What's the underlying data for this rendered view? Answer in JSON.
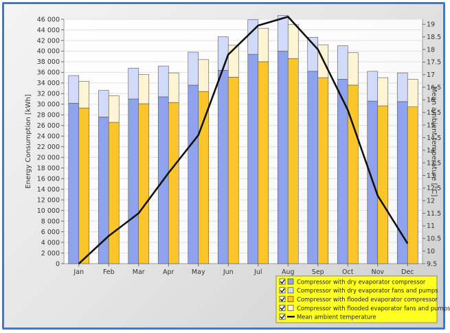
{
  "chart_data": {
    "type": "bar",
    "categories": [
      "Jan",
      "Feb",
      "Mar",
      "Apr",
      "May",
      "Jun",
      "Jul",
      "Aug",
      "Sep",
      "Oct",
      "Nov",
      "Dec"
    ],
    "ylabel": "Energy Consumption [kWh]",
    "y2label": "Mean ambient temperature [°C]",
    "ylim": [
      0,
      46000
    ],
    "y2lim": [
      9.5,
      19.2
    ],
    "yticks": [
      0,
      2000,
      4000,
      6000,
      8000,
      10000,
      12000,
      14000,
      16000,
      18000,
      20000,
      22000,
      24000,
      26000,
      28000,
      30000,
      32000,
      34000,
      36000,
      38000,
      40000,
      42000,
      44000,
      46000
    ],
    "ytick_labels": [
      "0",
      "2 000",
      "4 000",
      "6 000",
      "8 000",
      "10 000",
      "12 000",
      "14 000",
      "16 000",
      "18 000",
      "20 000",
      "22 000",
      "24 000",
      "26 000",
      "28 000",
      "30 000",
      "32 000",
      "34 000",
      "36 000",
      "38 000",
      "40 000",
      "42 000",
      "44 000",
      "46 000"
    ],
    "y2ticks": [
      9.5,
      10,
      10.5,
      11,
      11.5,
      12,
      12.5,
      13,
      13.5,
      14,
      14.5,
      15,
      15.5,
      16,
      16.5,
      17,
      17.5,
      18,
      18.5,
      19
    ],
    "y2tick_labels": [
      "9.5",
      "10",
      "10.5",
      "11",
      "11.5",
      "12",
      "12.5",
      "13",
      "13.5",
      "14",
      "14.5",
      "15",
      "15.5",
      "16",
      "16.5",
      "17",
      "17.5",
      "18",
      "18.5",
      "19"
    ],
    "grid": true,
    "legend_position": "bottom-right",
    "stacks": [
      {
        "offset": "left",
        "series": [
          {
            "name": "Compressor with dry evaporator compressor",
            "color": "#8ea2ee",
            "values": [
              30200,
              27600,
              31000,
              31400,
              33600,
              36400,
              39400,
              40000,
              36200,
              34700,
              30600,
              30500
            ]
          },
          {
            "name": "Compressor with dry evaporator fans and pumps",
            "color": "#d2dafa",
            "values": [
              5200,
              5000,
              5800,
              5800,
              6200,
              6300,
              6500,
              6700,
              6400,
              6300,
              5600,
              5400
            ]
          }
        ]
      },
      {
        "offset": "right",
        "series": [
          {
            "name": "Compressor with flooded evaporator compressor",
            "color": "#fcc62a",
            "values": [
              29300,
              26600,
              30100,
              30300,
              32400,
              35100,
              38000,
              38600,
              35000,
              33600,
              29700,
              29500
            ]
          },
          {
            "name": "Compressor with flooded evaporator fans and pumps",
            "color": "#fdf4d4",
            "values": [
              5000,
              5000,
              5500,
              5600,
              6000,
              6000,
              6300,
              6400,
              6200,
              6100,
              5300,
              5200
            ]
          }
        ]
      }
    ],
    "line": {
      "name": "Mean ambient temperature",
      "color": "#111111",
      "axis": "y2",
      "values": [
        9.5,
        10.6,
        11.5,
        13.1,
        14.6,
        17.8,
        18.95,
        19.3,
        18.0,
        15.6,
        12.2,
        10.3
      ]
    }
  },
  "legend": {
    "background": "#ffff22",
    "items": [
      {
        "label": "Compressor with dry evaporator compressor",
        "color": "#8ea2ee",
        "kind": "box"
      },
      {
        "label": "Compressor with dry evaporator fans and pumps",
        "color": "#d2dafa",
        "kind": "box"
      },
      {
        "label": "Compressor with flooded evaporator compressor",
        "color": "#fcc62a",
        "kind": "box"
      },
      {
        "label": "Compressor with flooded evaporator fans and pumps",
        "color": "#fdf4d4",
        "kind": "box"
      },
      {
        "label": "Mean ambient temperature",
        "color": "#111111",
        "kind": "line"
      }
    ]
  }
}
